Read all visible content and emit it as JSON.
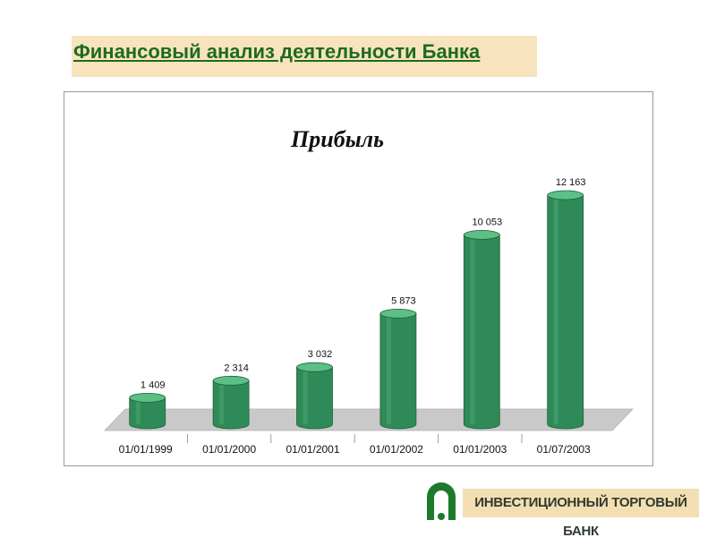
{
  "page": {
    "heading": "Финансовый анализ деятельности Банка"
  },
  "chart_data": {
    "type": "bar",
    "title": "Прибыль",
    "categories": [
      "01/01/1999",
      "01/01/2000",
      "01/01/2001",
      "01/01/2002",
      "01/01/2003",
      "01/07/2003"
    ],
    "values": [
      1409,
      2314,
      3032,
      5873,
      10053,
      12163
    ],
    "value_labels": [
      "1 409",
      "2 314",
      "3 032",
      "5 873",
      "10 053",
      "12 163"
    ],
    "ylim": [
      0,
      12163
    ],
    "grid": false,
    "legend": false,
    "colors": {
      "bar": "#2e8b57",
      "bar_top": "#5cbf85",
      "floor": "#c9c9c9"
    }
  },
  "footer": {
    "logo_text": "ИНВЕСТИЦИОННЫЙ ТОРГОВЫЙ БАНК",
    "logo_icon": "bank-emblem-icon",
    "logo_color": "#1d7a2a"
  }
}
